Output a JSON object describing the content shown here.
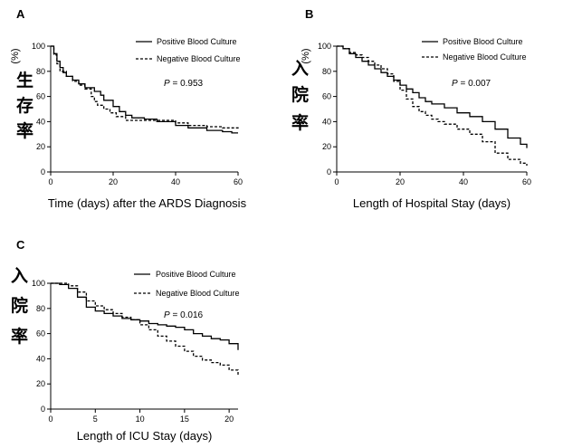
{
  "colors": {
    "line": "#000000",
    "background": "#ffffff"
  },
  "chart_data": [
    {
      "panel": "A",
      "type": "line",
      "step": true,
      "xlabel": "Time (days) after the ARDS Diagnosis",
      "ylabel_unit": "(%)",
      "ylabel_cjk": [
        "生",
        "存",
        "率"
      ],
      "xlim": [
        0,
        60
      ],
      "ylim": [
        0,
        100
      ],
      "xticks": [
        0,
        20,
        40,
        60
      ],
      "yticks": [
        0,
        20,
        40,
        60,
        80,
        100
      ],
      "legend_placement": "top-right",
      "annotation": {
        "prefix": "P",
        "text": " = 0.953"
      },
      "series": [
        {
          "name": "Positive Blood Culture",
          "style": "solid",
          "x": [
            0,
            1,
            2,
            3,
            4,
            5,
            7,
            9,
            11,
            14,
            16,
            17,
            20,
            22,
            24,
            26,
            30,
            34,
            40,
            44,
            50,
            55,
            58,
            60
          ],
          "y": [
            100,
            94,
            88,
            83,
            79,
            76,
            73,
            70,
            67,
            64,
            61,
            57,
            52,
            48,
            45,
            43,
            42,
            40,
            37,
            35,
            33,
            32,
            31,
            31
          ]
        },
        {
          "name": "Negative Blood Culture",
          "style": "dashed",
          "x": [
            0,
            1,
            2,
            3,
            5,
            7,
            9,
            11,
            13,
            14,
            15,
            17,
            19,
            21,
            24,
            30,
            36,
            40,
            44,
            50,
            55,
            60
          ],
          "y": [
            100,
            93,
            86,
            80,
            76,
            72,
            69,
            66,
            60,
            56,
            53,
            50,
            47,
            44,
            41,
            41,
            41,
            39,
            37,
            36,
            35,
            34
          ]
        }
      ]
    },
    {
      "panel": "B",
      "type": "line",
      "step": true,
      "xlabel": "Length of Hospital Stay (days)",
      "ylabel_unit": "(%)",
      "ylabel_cjk": [
        "入",
        "院",
        "率"
      ],
      "xlim": [
        0,
        60
      ],
      "ylim": [
        0,
        100
      ],
      "xticks": [
        0,
        20,
        40,
        60
      ],
      "yticks": [
        0,
        20,
        40,
        60,
        80,
        100
      ],
      "legend_placement": "top-right",
      "annotation": {
        "prefix": "P",
        "text": " = 0.007"
      },
      "series": [
        {
          "name": "Positive Blood Culture",
          "style": "solid",
          "x": [
            0,
            2,
            4,
            6,
            8,
            10,
            12,
            14,
            16,
            18,
            20,
            22,
            24,
            26,
            28,
            30,
            34,
            38,
            42,
            46,
            50,
            54,
            58,
            60
          ],
          "y": [
            100,
            98,
            94,
            91,
            88,
            85,
            82,
            79,
            76,
            73,
            69,
            66,
            63,
            59,
            56,
            54,
            51,
            47,
            44,
            40,
            34,
            27,
            22,
            19
          ]
        },
        {
          "name": "Negative Blood Culture",
          "style": "dashed",
          "x": [
            0,
            2,
            4,
            6,
            8,
            10,
            12,
            14,
            16,
            18,
            20,
            22,
            24,
            26,
            28,
            30,
            32,
            34,
            38,
            42,
            46,
            50,
            54,
            58,
            60
          ],
          "y": [
            100,
            98,
            95,
            93,
            91,
            88,
            85,
            82,
            78,
            72,
            65,
            58,
            52,
            48,
            45,
            42,
            40,
            38,
            34,
            30,
            24,
            15,
            10,
            7,
            5
          ]
        }
      ]
    },
    {
      "panel": "C",
      "type": "line",
      "step": true,
      "xlabel": "Length of ICU Stay (days)",
      "ylabel_cjk": [
        "入",
        "院",
        "率"
      ],
      "xlim": [
        0,
        21
      ],
      "ylim": [
        0,
        100
      ],
      "xticks": [
        0,
        5,
        10,
        15,
        20
      ],
      "yticks": [
        0,
        20,
        40,
        60,
        80,
        100
      ],
      "legend_placement": "top-right",
      "annotation": {
        "prefix": "P",
        "text": " = 0.016"
      },
      "series": [
        {
          "name": "Positive Blood Culture",
          "style": "solid",
          "x": [
            0,
            1,
            2,
            3,
            4,
            5,
            6,
            7,
            8,
            9,
            10,
            11,
            12,
            13,
            14,
            15,
            16,
            17,
            18,
            19,
            20,
            21
          ],
          "y": [
            100,
            99,
            96,
            89,
            81,
            78,
            76,
            74,
            72,
            71,
            70,
            68,
            67,
            66,
            65,
            63,
            60,
            58,
            56,
            55,
            52,
            47
          ]
        },
        {
          "name": "Negative Blood Culture",
          "style": "dashed",
          "x": [
            0,
            2,
            3,
            4,
            5,
            6,
            7,
            8,
            9,
            10,
            11,
            12,
            13,
            14,
            15,
            16,
            17,
            18,
            19,
            20,
            21
          ],
          "y": [
            100,
            98,
            93,
            86,
            82,
            79,
            76,
            73,
            71,
            67,
            63,
            58,
            54,
            50,
            46,
            42,
            39,
            37,
            35,
            31,
            26
          ]
        }
      ]
    }
  ]
}
